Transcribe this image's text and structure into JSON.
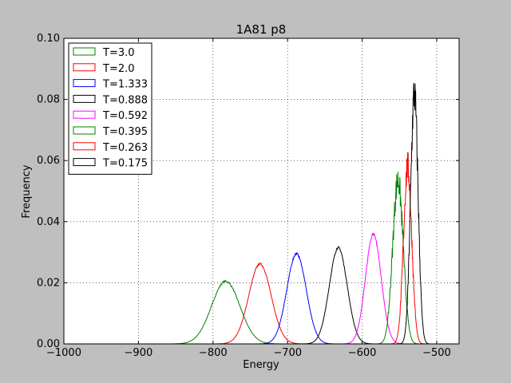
{
  "chart_data": {
    "type": "line",
    "title": "1A81 p8",
    "xlabel": "Energy",
    "ylabel": "Frequency",
    "xlim": [
      -1000,
      -470
    ],
    "ylim": [
      0,
      0.1
    ],
    "xticks": [
      -1000,
      -900,
      -800,
      -700,
      -600,
      -500
    ],
    "xtick_labels": [
      "−1000",
      "−900",
      "−800",
      "−700",
      "−600",
      "−500"
    ],
    "yticks": [
      0,
      0.02,
      0.04,
      0.06,
      0.08,
      0.1
    ],
    "ytick_labels": [
      "0.00",
      "0.02",
      "0.04",
      "0.06",
      "0.08",
      "0.10"
    ],
    "grid": true,
    "legend_position": "top-left",
    "series": [
      {
        "name": "T=3.0",
        "color": "#008000",
        "center": -783,
        "peak": 0.0205,
        "sigma": 19.0
      },
      {
        "name": "T=2.0",
        "color": "#ff0000",
        "center": -737,
        "peak": 0.0262,
        "sigma": 15.0
      },
      {
        "name": "T=1.333",
        "color": "#0000ff",
        "center": -688,
        "peak": 0.0295,
        "sigma": 13.0
      },
      {
        "name": "T=0.888",
        "color": "#000000",
        "center": -632,
        "peak": 0.0315,
        "sigma": 12.0
      },
      {
        "name": "T=0.592",
        "color": "#ff00ff",
        "center": -585,
        "peak": 0.036,
        "sigma": 10.5
      },
      {
        "name": "T=0.395",
        "color": "#008000",
        "center": -552,
        "peak": 0.0535,
        "sigma": 7.0
      },
      {
        "name": "T=0.263",
        "color": "#ff0000",
        "center": -539,
        "peak": 0.058,
        "sigma": 5.5
      },
      {
        "name": "T=0.175",
        "color": "#000000",
        "center": -530,
        "peak": 0.082,
        "sigma": 5.0
      }
    ]
  }
}
